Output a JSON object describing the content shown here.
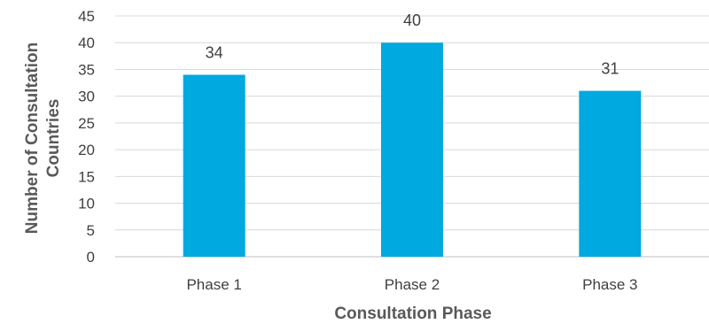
{
  "chart_data": {
    "type": "bar",
    "categories": [
      "Phase 1",
      "Phase 2",
      "Phase 3"
    ],
    "values": [
      34,
      40,
      31
    ],
    "data_labels": [
      "34",
      "40",
      "31"
    ],
    "title": "",
    "xlabel": "Consultation Phase",
    "ylabel_lines": [
      "Number of Consultation",
      "Countries"
    ],
    "ylim": [
      0,
      45
    ],
    "yticks": [
      0,
      5,
      10,
      15,
      20,
      25,
      30,
      35,
      40,
      45
    ],
    "grid": true,
    "legend": "none",
    "bar_color": "#00a9e0"
  }
}
